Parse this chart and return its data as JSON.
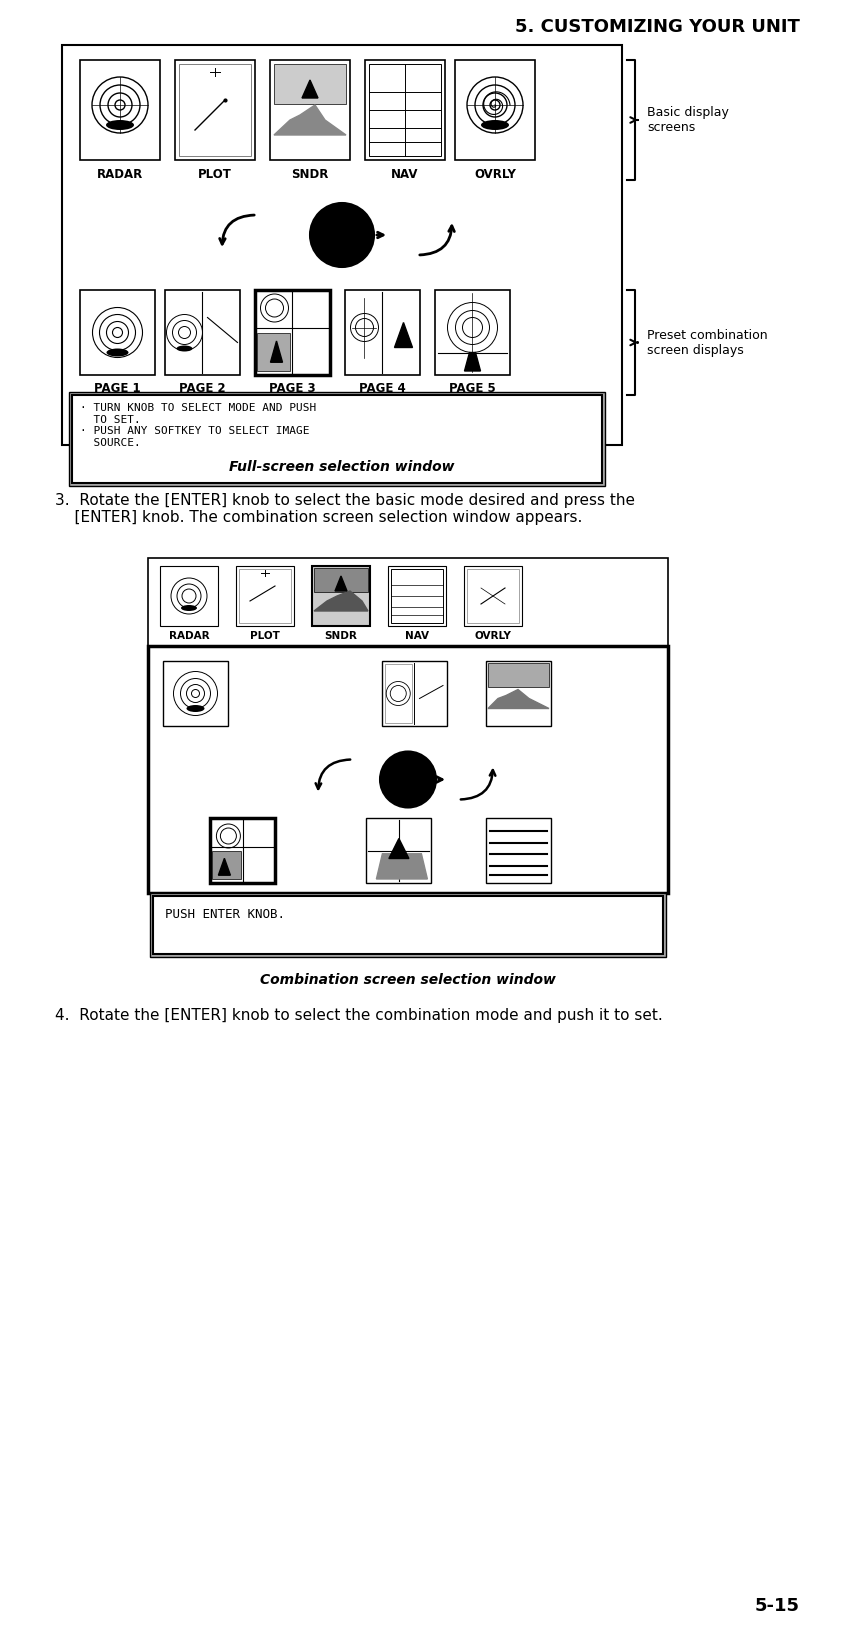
{
  "title": "5. CUSTOMIZING YOUR UNIT",
  "page_num": "5-15",
  "bg_color": "#ffffff",
  "fig_width": 8.54,
  "fig_height": 16.34,
  "header_fontsize": 13,
  "body_fontsize": 11,
  "small_fontsize": 8,
  "caption_fontsize": 10,
  "label_top_row": [
    "RADAR",
    "PLOT",
    "SNDR",
    "NAV",
    "OVRLY"
  ],
  "label_bottom_row": [
    "PAGE 1",
    "PAGE 2",
    "PAGE 3",
    "PAGE 4",
    "PAGE 5"
  ],
  "label_combo_top": [
    "RADAR",
    "PLOT",
    "SNDR",
    "NAV",
    "OVRLY"
  ],
  "caption1": "Full-screen selection window",
  "caption2": "Combination screen selection window",
  "text_box1": "· TURN KNOB TO SELECT MODE AND PUSH\n  TO SET.\n· PUSH ANY SOFTKEY TO SELECT IMAGE\n  SOURCE.",
  "text_box2": "PUSH ENTER KNOB.",
  "step3_text": "3.  Rotate the [ENTER] knob to select the basic mode desired and press the\n    [ENTER] knob. The combination screen selection window appears.",
  "step4_text": "4.  Rotate the [ENTER] knob to select the combination mode and push it to set.",
  "bracket_label1": "Basic display\nscreens",
  "bracket_label2": "Preset combination\nscreen displays"
}
